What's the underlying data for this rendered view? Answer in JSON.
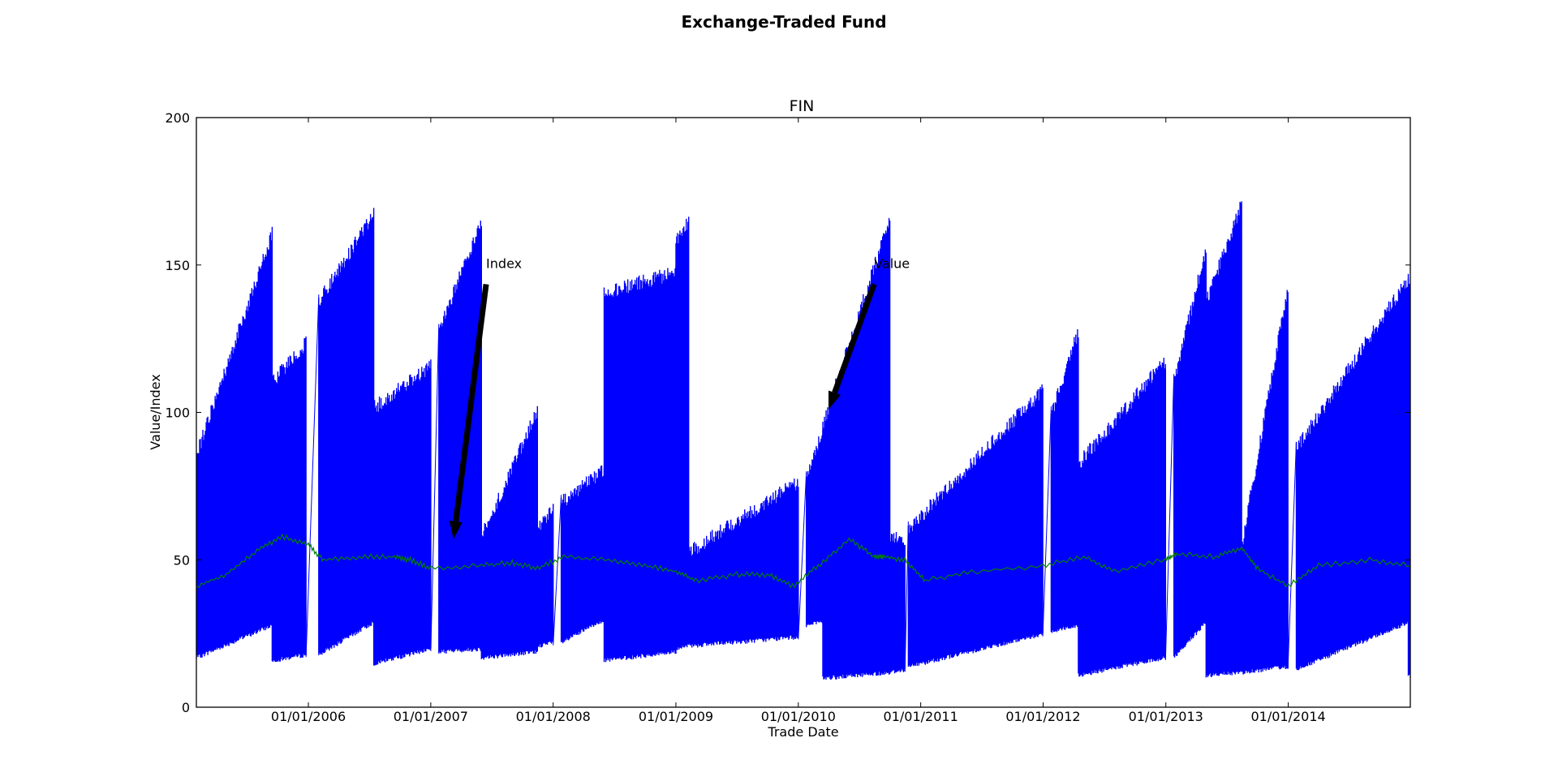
{
  "figure": {
    "suptitle": "Exchange-Traded Fund"
  },
  "chart_data": {
    "type": "line",
    "title": "FIN",
    "xlabel": "Trade Date",
    "ylabel": "Value/Index",
    "xlim": [
      "2005-02-01",
      "2014-12-31"
    ],
    "ylim": [
      0,
      200
    ],
    "yticks": [
      0,
      50,
      100,
      150,
      200
    ],
    "xticks": [
      "01/01/2006",
      "01/01/2007",
      "01/01/2008",
      "01/01/2009",
      "01/01/2010",
      "01/01/2011",
      "01/01/2012",
      "01/01/2013",
      "01/01/2014"
    ],
    "grid": false,
    "colors": {
      "value": "#0000ff",
      "index": "#008000"
    },
    "series": [
      {
        "key": "value",
        "style": "dense-oscillation",
        "segments": [
          {
            "start": "2005-02-01",
            "end": "2005-09-15",
            "hi_start": 88,
            "hi_end": 163,
            "lo_start": 16,
            "lo_end": 27
          },
          {
            "start": "2005-09-15",
            "end": "2005-12-25",
            "hi_start": 113,
            "hi_end": 126,
            "lo_start": 15,
            "lo_end": 17
          },
          {
            "start": "2006-02-01",
            "end": "2006-07-15",
            "hi_start": 140,
            "hi_end": 170,
            "lo_start": 17,
            "lo_end": 28
          },
          {
            "start": "2006-07-15",
            "end": "2007-01-01",
            "hi_start": 104,
            "hi_end": 118,
            "lo_start": 14,
            "lo_end": 19
          },
          {
            "start": "2007-01-25",
            "end": "2007-06-01",
            "hi_start": 130,
            "hi_end": 167,
            "lo_start": 18,
            "lo_end": 19
          },
          {
            "start": "2007-06-01",
            "end": "2007-11-15",
            "hi_start": 60,
            "hi_end": 103,
            "lo_start": 16,
            "lo_end": 18
          },
          {
            "start": "2007-11-15",
            "end": "2008-01-01",
            "hi_start": 62,
            "hi_end": 70,
            "lo_start": 20,
            "lo_end": 21
          },
          {
            "start": "2008-01-25",
            "end": "2008-06-01",
            "hi_start": 72,
            "hi_end": 83,
            "lo_start": 21,
            "lo_end": 29
          },
          {
            "start": "2008-06-01",
            "end": "2009-01-01",
            "hi_start": 143,
            "hi_end": 150,
            "lo_start": 15,
            "lo_end": 18
          },
          {
            "start": "2009-01-01",
            "end": "2009-02-08",
            "hi_start": 160,
            "hi_end": 167,
            "lo_start": 19,
            "lo_end": 20
          },
          {
            "start": "2009-02-08",
            "end": "2010-01-01",
            "hi_start": 55,
            "hi_end": 79,
            "lo_start": 20,
            "lo_end": 23
          },
          {
            "start": "2010-01-25",
            "end": "2010-03-15",
            "hi_start": 80,
            "hi_end": 96,
            "lo_start": 27,
            "lo_end": 28
          },
          {
            "start": "2010-03-15",
            "end": "2010-10-01",
            "hi_start": 98,
            "hi_end": 168,
            "lo_start": 9,
            "lo_end": 11
          },
          {
            "start": "2010-10-01",
            "end": "2010-11-15",
            "hi_start": 60,
            "hi_end": 60,
            "lo_start": 11,
            "lo_end": 12
          },
          {
            "start": "2010-11-25",
            "end": "2011-12-31",
            "hi_start": 63,
            "hi_end": 110,
            "lo_start": 13,
            "lo_end": 24
          },
          {
            "start": "2012-01-25",
            "end": "2012-04-15",
            "hi_start": 102,
            "hi_end": 130,
            "lo_start": 25,
            "lo_end": 27
          },
          {
            "start": "2012-04-15",
            "end": "2012-12-31",
            "hi_start": 85,
            "hi_end": 120,
            "lo_start": 10,
            "lo_end": 16
          },
          {
            "start": "2013-01-25",
            "end": "2013-05-01",
            "hi_start": 113,
            "hi_end": 158,
            "lo_start": 16,
            "lo_end": 28
          },
          {
            "start": "2013-05-01",
            "end": "2013-08-15",
            "hi_start": 140,
            "hi_end": 173,
            "lo_start": 10,
            "lo_end": 11
          },
          {
            "start": "2013-08-15",
            "end": "2013-12-31",
            "hi_start": 57,
            "hi_end": 145,
            "lo_start": 11,
            "lo_end": 13
          },
          {
            "start": "2014-01-25",
            "end": "2014-12-25",
            "hi_start": 90,
            "hi_end": 148,
            "lo_start": 12,
            "lo_end": 28
          },
          {
            "start": "2014-12-25",
            "end": "2014-12-31",
            "hi_start": 148,
            "hi_end": 148,
            "lo_start": 10,
            "lo_end": 10
          }
        ]
      },
      {
        "key": "index",
        "style": "line",
        "x": [
          "2005-02-01",
          "2005-05-01",
          "2005-08-01",
          "2005-10-15",
          "2006-01-01",
          "2006-02-15",
          "2006-06-01",
          "2006-09-15",
          "2006-11-01",
          "2007-01-01",
          "2007-06-01",
          "2007-09-01",
          "2007-11-15",
          "2008-02-01",
          "2008-06-15",
          "2008-10-01",
          "2009-01-01",
          "2009-03-01",
          "2009-07-01",
          "2009-10-01",
          "2009-12-15",
          "2010-03-01",
          "2010-06-01",
          "2010-08-15",
          "2010-09-15",
          "2010-11-15",
          "2011-01-15",
          "2011-06-01",
          "2011-12-31",
          "2012-05-01",
          "2012-08-01",
          "2012-12-31",
          "2013-02-01",
          "2013-06-01",
          "2013-08-15",
          "2013-10-01",
          "2014-01-01",
          "2014-04-01",
          "2014-09-01",
          "2014-12-31"
        ],
        "y": [
          41,
          45,
          53,
          58,
          55,
          50,
          51,
          51,
          50,
          47,
          48,
          49,
          47,
          51,
          50,
          48,
          46,
          43,
          45,
          45,
          41,
          48,
          57,
          51,
          51,
          50,
          43,
          46,
          48,
          51,
          46,
          50,
          52,
          51,
          54,
          47,
          41,
          48,
          50,
          48
        ]
      }
    ],
    "annotations": [
      {
        "text": "Index",
        "text_x": "2007-06-15",
        "text_y": 149,
        "arrow_to_x": "2007-03-10",
        "arrow_to_y": 57
      },
      {
        "text": "Value",
        "text_x": "2010-08-15",
        "text_y": 149,
        "arrow_to_x": "2010-04-01",
        "arrow_to_y": 101
      }
    ]
  }
}
